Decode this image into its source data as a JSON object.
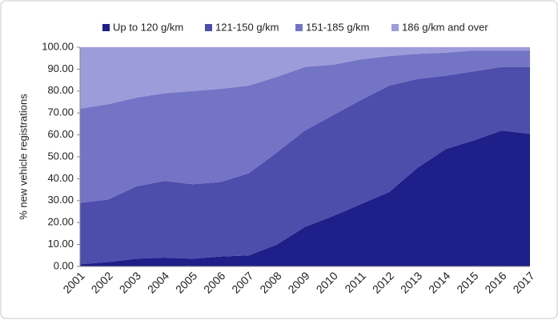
{
  "chart_data": {
    "type": "stacked-area",
    "ylabel": "% new vehicle registrations",
    "categories": [
      "2001",
      "2002",
      "2003",
      "2004",
      "2005",
      "2006",
      "2007",
      "2008",
      "2009",
      "2010",
      "2011",
      "2012",
      "2013",
      "2014",
      "2015",
      "2016",
      "2017"
    ],
    "series": [
      {
        "name": "Up to 120 g/km",
        "color": "#1f1f8a",
        "values": [
          1,
          2,
          3.5,
          4,
          3.5,
          4.5,
          5,
          10,
          18,
          23,
          28.5,
          34,
          45,
          53.5,
          57.5,
          62,
          60.5
        ]
      },
      {
        "name": "121-150 g/km",
        "color": "#4d4dac",
        "values": [
          28,
          28.5,
          33,
          35,
          34,
          34,
          37.5,
          42,
          44,
          46,
          47.5,
          48.5,
          40.5,
          33.5,
          31.5,
          29,
          30.5
        ]
      },
      {
        "name": "151-185 g/km",
        "color": "#7474c6",
        "values": [
          43,
          43.5,
          40.5,
          40,
          42.5,
          42.5,
          40,
          34.5,
          29,
          23,
          18.5,
          13.5,
          11.5,
          10.5,
          9.5,
          7.5,
          7.5
        ]
      },
      {
        "name": "186 g/km and over",
        "color": "#9d9cdb",
        "values": [
          28,
          26,
          23,
          21,
          20,
          19,
          17.5,
          13.5,
          9,
          8,
          5.5,
          4,
          3,
          2.5,
          1.5,
          1.5,
          1.5
        ]
      }
    ],
    "ylim": [
      0,
      100
    ],
    "yticks": [
      {
        "value": 0,
        "label": "0.00"
      },
      {
        "value": 10,
        "label": "10.00"
      },
      {
        "value": 20,
        "label": "20.00"
      },
      {
        "value": 30,
        "label": "30.00"
      },
      {
        "value": 40,
        "label": "40.00"
      },
      {
        "value": 50,
        "label": "50.00"
      },
      {
        "value": 60,
        "label": "60.00"
      },
      {
        "value": 70,
        "label": "70.00"
      },
      {
        "value": 80,
        "label": "80.00"
      },
      {
        "value": 90,
        "label": "90.00"
      },
      {
        "value": 100,
        "label": "100.00"
      }
    ],
    "legend": "top"
  }
}
